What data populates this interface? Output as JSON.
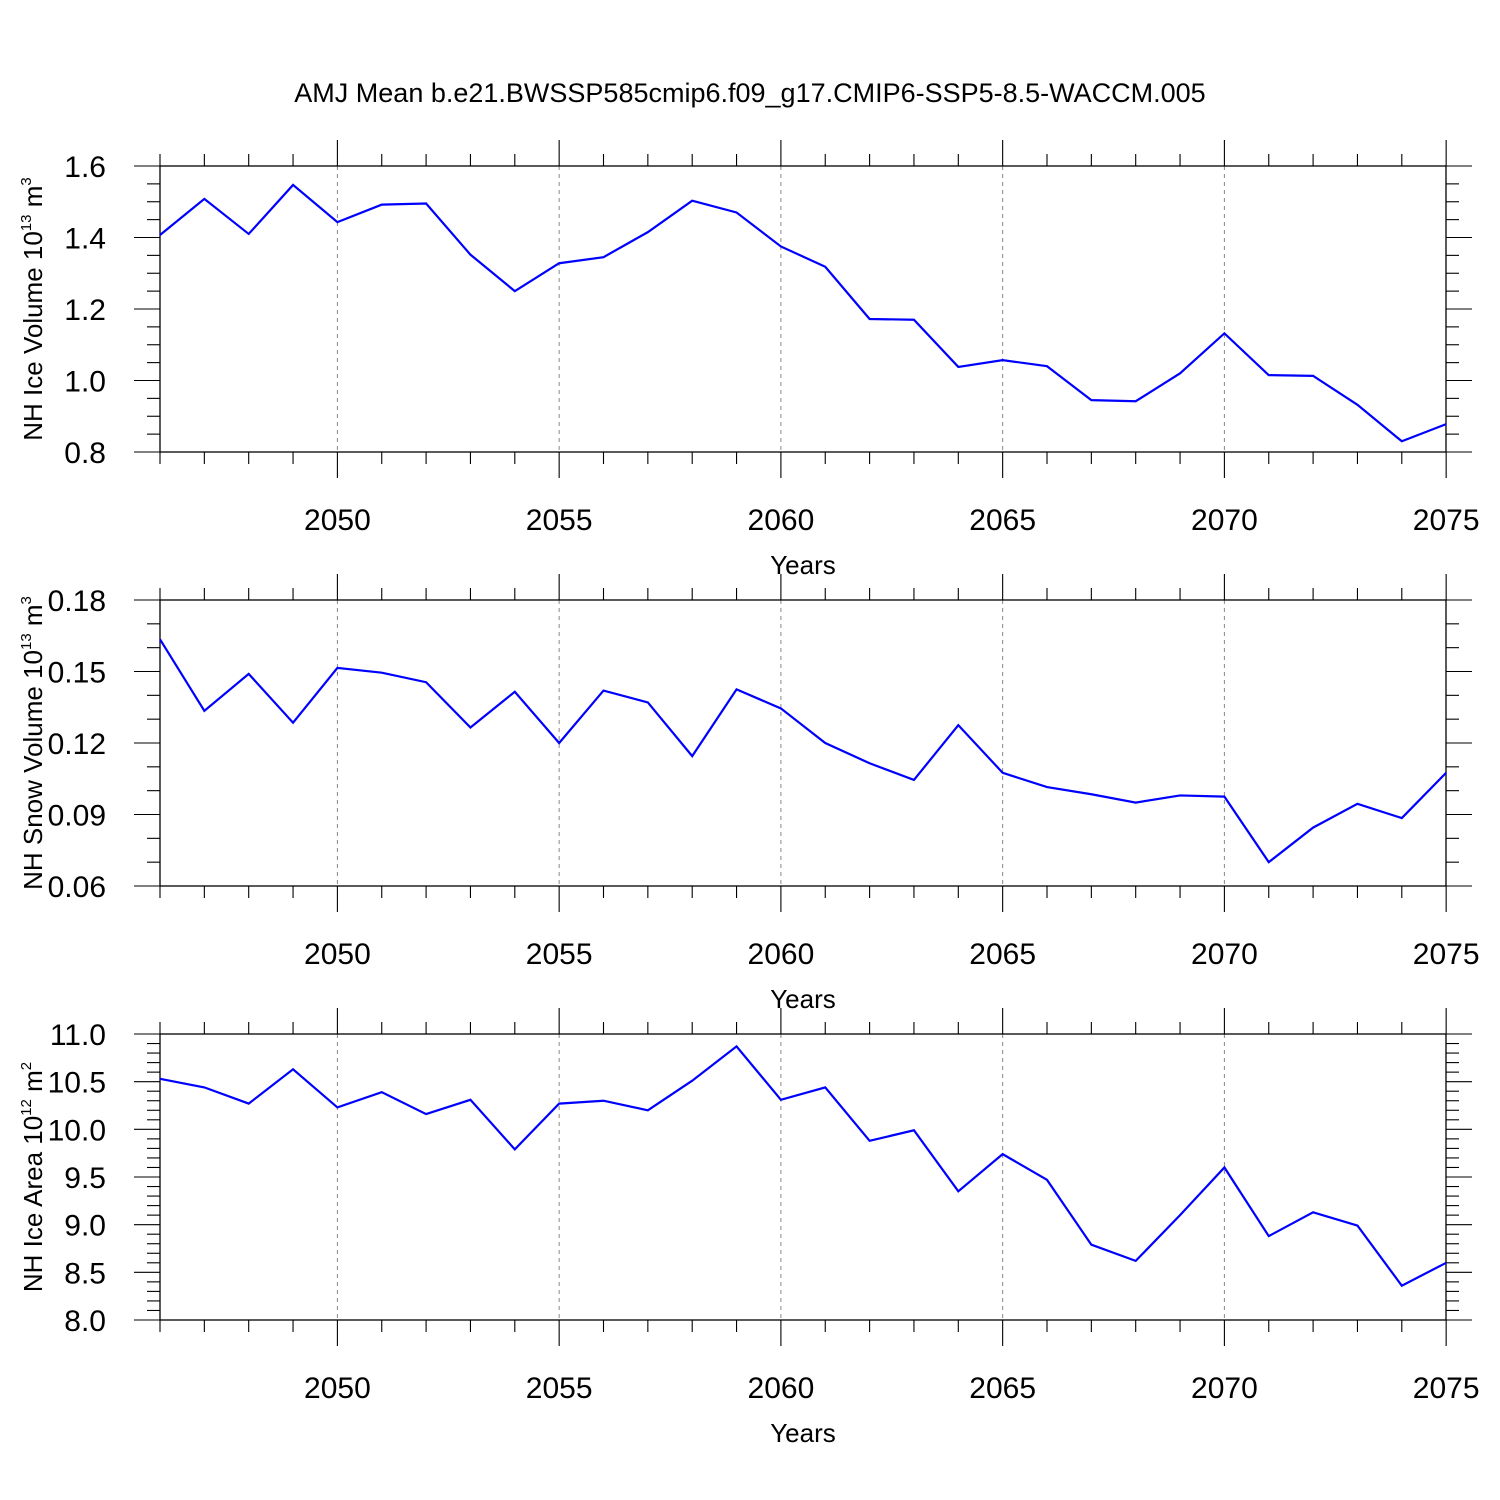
{
  "title": "AMJ Mean b.e21.BWSSP585cmip6.f09_g17.CMIP6-SSP5-8.5-WACCM.005",
  "colors": {
    "line": "#0000ff",
    "grid": "#888888",
    "axes": "#000000"
  },
  "chart_data": [
    {
      "type": "line",
      "xlabel": "Years",
      "ylabel": {
        "main": "NH Ice Volume 10",
        "sup": "13",
        "unit": " m",
        "unit_sup": "3"
      },
      "xlim": [
        2046,
        2075
      ],
      "ylim": [
        0.8,
        1.6
      ],
      "yticks": [
        0.8,
        1.0,
        1.2,
        1.4,
        1.6
      ],
      "ytick_labels": [
        "0.8",
        "1.0",
        "1.2",
        "1.4",
        "1.6"
      ],
      "yminor_step": 0.05,
      "xticks": [
        2050,
        2055,
        2060,
        2065,
        2070,
        2075
      ],
      "xtick_labels": [
        "2050",
        "2055",
        "2060",
        "2065",
        "2070",
        "2075"
      ],
      "grid": "vertical dashed at major x ticks",
      "x": [
        2046,
        2047,
        2048,
        2049,
        2050,
        2051,
        2052,
        2053,
        2054,
        2055,
        2056,
        2057,
        2058,
        2059,
        2060,
        2061,
        2062,
        2063,
        2064,
        2065,
        2066,
        2067,
        2068,
        2069,
        2070,
        2071,
        2072,
        2073,
        2074,
        2075
      ],
      "y": [
        1.407,
        1.508,
        1.41,
        1.547,
        1.443,
        1.492,
        1.495,
        1.352,
        1.25,
        1.328,
        1.345,
        1.415,
        1.503,
        1.47,
        1.375,
        1.318,
        1.172,
        1.17,
        1.038,
        1.057,
        1.04,
        0.945,
        0.942,
        1.02,
        1.132,
        1.015,
        1.013,
        0.932,
        0.83,
        0.878
      ]
    },
    {
      "type": "line",
      "xlabel": "Years",
      "ylabel": {
        "main": "NH Snow Volume 10",
        "sup": "13",
        "unit": " m",
        "unit_sup": "3"
      },
      "xlim": [
        2046,
        2075
      ],
      "ylim": [
        0.06,
        0.18
      ],
      "yticks": [
        0.06,
        0.09,
        0.12,
        0.15,
        0.18
      ],
      "ytick_labels": [
        "0.06",
        "0.09",
        "0.12",
        "0.15",
        "0.18"
      ],
      "yminor_step": 0.01,
      "xticks": [
        2050,
        2055,
        2060,
        2065,
        2070,
        2075
      ],
      "xtick_labels": [
        "2050",
        "2055",
        "2060",
        "2065",
        "2070",
        "2075"
      ],
      "grid": "vertical dashed at major x ticks",
      "x": [
        2046,
        2047,
        2048,
        2049,
        2050,
        2051,
        2052,
        2053,
        2054,
        2055,
        2056,
        2057,
        2058,
        2059,
        2060,
        2061,
        2062,
        2063,
        2064,
        2065,
        2066,
        2067,
        2068,
        2069,
        2070,
        2071,
        2072,
        2073,
        2074,
        2075
      ],
      "y": [
        0.1635,
        0.1335,
        0.149,
        0.1285,
        0.1515,
        0.1495,
        0.1455,
        0.1265,
        0.1415,
        0.12,
        0.142,
        0.137,
        0.1145,
        0.1425,
        0.1345,
        0.12,
        0.1115,
        0.1045,
        0.1275,
        0.1075,
        0.1015,
        0.0985,
        0.095,
        0.098,
        0.0975,
        0.07,
        0.0845,
        0.0945,
        0.0885,
        0.1075
      ]
    },
    {
      "type": "line",
      "xlabel": "Years",
      "ylabel": {
        "main": "NH Ice Area 10",
        "sup": "12",
        "unit": " m",
        "unit_sup": "2"
      },
      "xlim": [
        2046,
        2075
      ],
      "ylim": [
        8.0,
        11.0
      ],
      "yticks": [
        8.0,
        8.5,
        9.0,
        9.5,
        10.0,
        10.5,
        11.0
      ],
      "ytick_labels": [
        "8.0",
        "8.5",
        "9.0",
        "9.5",
        "10.0",
        "10.5",
        "11.0"
      ],
      "yminor_step": 0.1,
      "xticks": [
        2050,
        2055,
        2060,
        2065,
        2070,
        2075
      ],
      "xtick_labels": [
        "2050",
        "2055",
        "2060",
        "2065",
        "2070",
        "2075"
      ],
      "grid": "vertical dashed at major x ticks",
      "x": [
        2046,
        2047,
        2048,
        2049,
        2050,
        2051,
        2052,
        2053,
        2054,
        2055,
        2056,
        2057,
        2058,
        2059,
        2060,
        2061,
        2062,
        2063,
        2064,
        2065,
        2066,
        2067,
        2068,
        2069,
        2070,
        2071,
        2072,
        2073,
        2074,
        2075
      ],
      "y": [
        10.53,
        10.44,
        10.27,
        10.63,
        10.23,
        10.39,
        10.16,
        10.31,
        9.79,
        10.27,
        10.3,
        10.2,
        10.51,
        10.87,
        10.31,
        10.44,
        9.88,
        9.99,
        9.35,
        9.74,
        9.47,
        8.79,
        8.62,
        9.1,
        9.6,
        8.88,
        9.13,
        8.99,
        8.36,
        8.6
      ]
    }
  ]
}
